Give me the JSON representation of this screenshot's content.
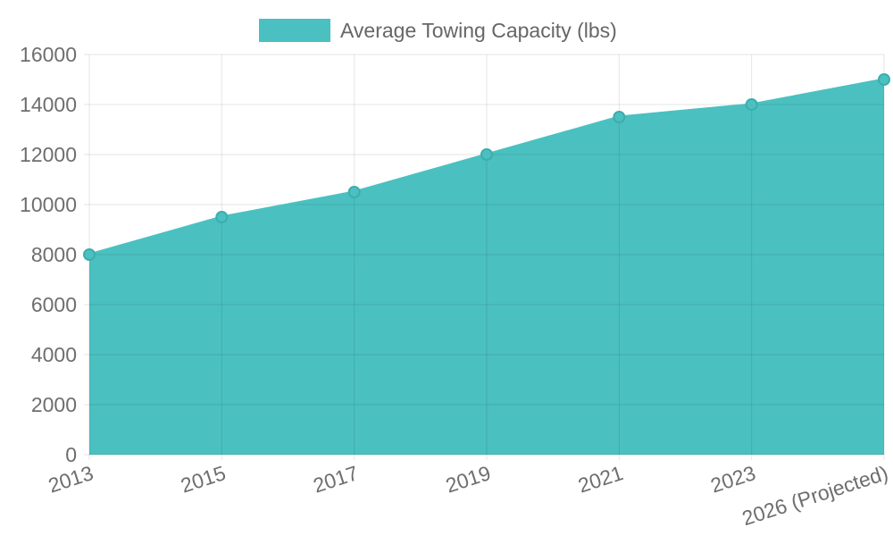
{
  "legend": {
    "label": "Average Towing Capacity (lbs)"
  },
  "chart_data": {
    "type": "area",
    "title": "",
    "categories": [
      "2013",
      "2015",
      "2017",
      "2019",
      "2021",
      "2023",
      "2026 (Projected)"
    ],
    "series": [
      {
        "name": "Average Towing Capacity (lbs)",
        "values": [
          8000,
          9500,
          10500,
          12000,
          13500,
          14000,
          15000
        ]
      }
    ],
    "xlabel": "",
    "ylabel": "",
    "ylim": [
      0,
      16000
    ],
    "yticks": [
      0,
      2000,
      4000,
      6000,
      8000,
      10000,
      12000,
      14000,
      16000
    ],
    "grid": true,
    "legend_position": "top",
    "x_tick_rotation_deg": -18,
    "markers": true
  },
  "colors": {
    "background": "#ffffff",
    "accent_teal": "#4bc0c0",
    "marker_border": "#3dadad",
    "grid": "rgba(0,0,0,0.10)",
    "tick_label": "#6e6e6e",
    "legend_text": "#666666"
  }
}
